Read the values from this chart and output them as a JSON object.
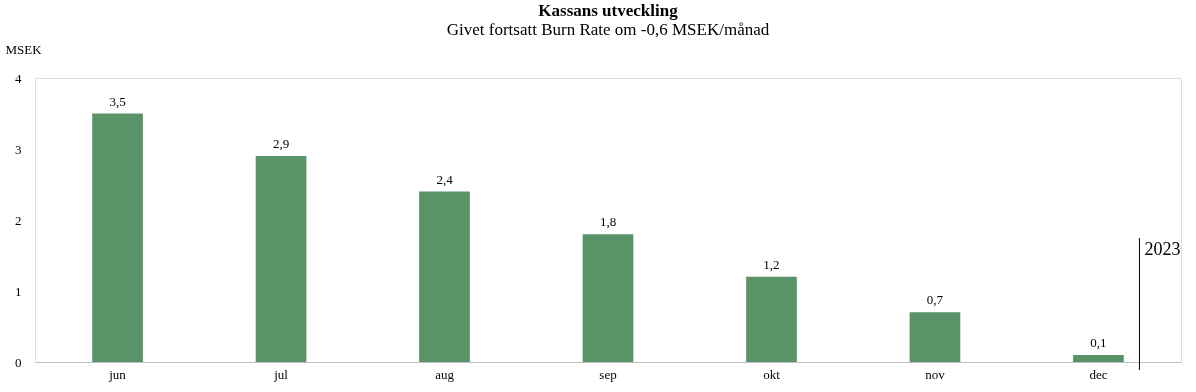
{
  "chart_data": {
    "type": "bar",
    "title": "Kassans utveckling",
    "subtitle": "Givet fortsatt Burn Rate om -0,6 MSEK/månad",
    "ylabel": "MSEK",
    "categories": [
      "jun",
      "jul",
      "aug",
      "sep",
      "okt",
      "nov",
      "dec"
    ],
    "values": [
      3.5,
      2.9,
      2.4,
      1.8,
      1.2,
      0.7,
      0.1
    ],
    "value_labels": [
      "3,5",
      "2,9",
      "2,4",
      "1,8",
      "1,2",
      "0,7",
      "0,1"
    ],
    "color": "#5a9367",
    "ylim": [
      0,
      4
    ],
    "yticks": [
      0,
      1,
      2,
      3,
      4
    ],
    "grid": false,
    "ref_lines": [
      {
        "axis": "x",
        "value": "dec",
        "label": "2023",
        "color": "#000000"
      }
    ]
  }
}
